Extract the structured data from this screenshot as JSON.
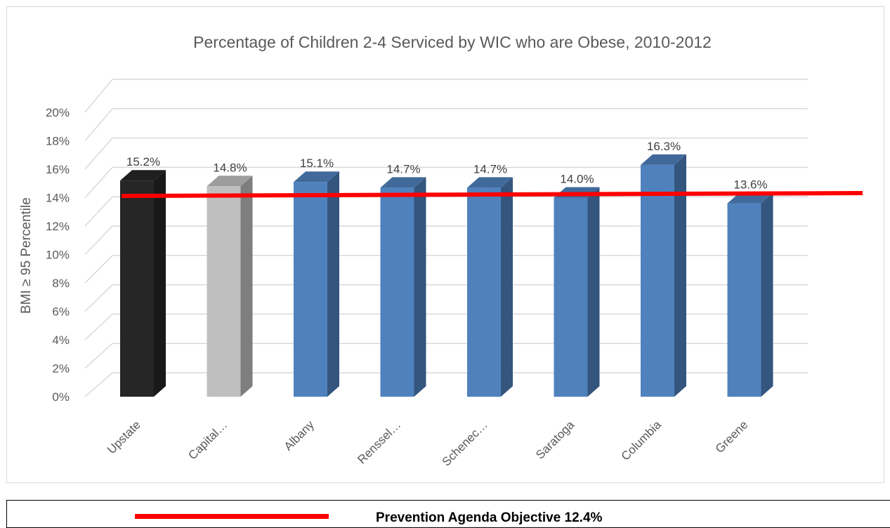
{
  "chart_data": {
    "type": "bar",
    "title": "Percentage of Children 2-4 Serviced by WIC who are Obese, 2010-2012",
    "xlabel": "",
    "ylabel": "BMI ≥ 95 Percentile",
    "ylim": [
      0,
      20
    ],
    "y_ticks": [
      "0%",
      "2%",
      "4%",
      "6%",
      "8%",
      "10%",
      "12%",
      "14%",
      "16%",
      "18%",
      "20%"
    ],
    "grid": true,
    "three_d": true,
    "categories": [
      "Upstate",
      "Capital…",
      "Albany",
      "Renssel…",
      "Schenec…",
      "Saratoga",
      "Columbia",
      "Greene"
    ],
    "values": [
      15.2,
      14.8,
      15.1,
      14.7,
      14.7,
      14.0,
      16.3,
      13.6
    ],
    "value_labels": [
      "15.2%",
      "14.8%",
      "15.1%",
      "14.7%",
      "14.7%",
      "14.0%",
      "16.3%",
      "13.6%"
    ],
    "bar_colors": [
      "#262626",
      "#bfbfbf",
      "#4f81bd",
      "#4f81bd",
      "#4f81bd",
      "#4f81bd",
      "#4f81bd",
      "#4f81bd"
    ],
    "reference_line": {
      "label": "Prevention Agenda Objective 12.4%",
      "value": 12.4,
      "color": "#ff0000"
    }
  }
}
